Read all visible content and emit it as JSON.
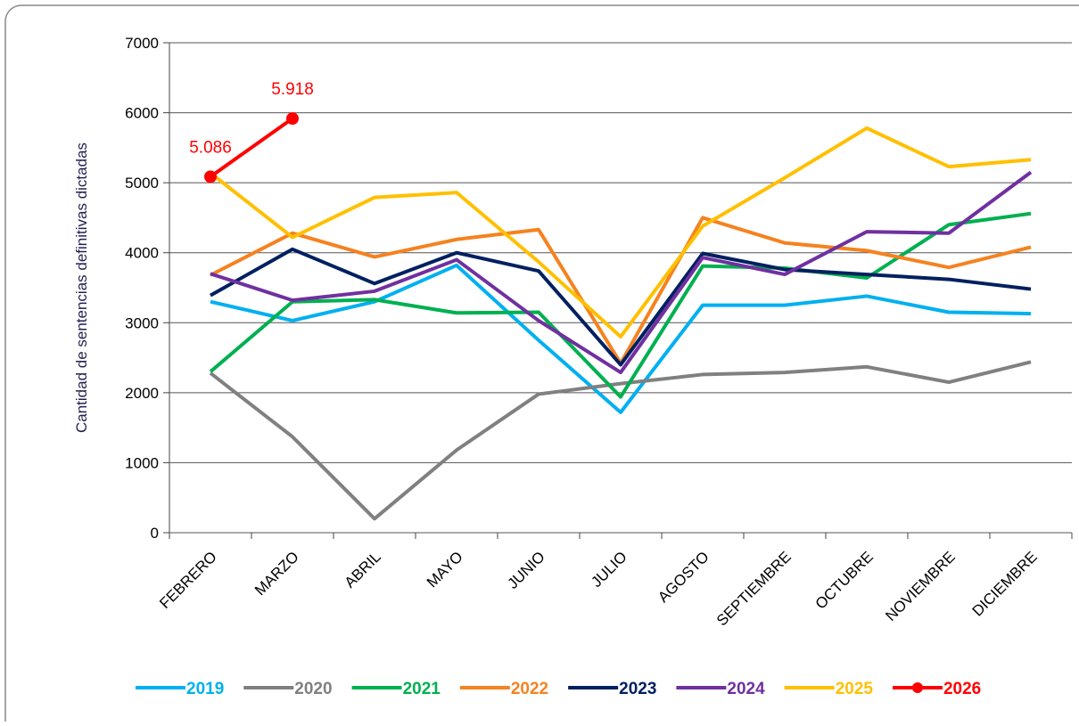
{
  "chart_data": {
    "type": "line",
    "y_label": "Cantidad de sentencias definitivas dictadas",
    "categories": [
      "FEBRERO",
      "MARZO",
      "ABRIL",
      "MAYO",
      "JUNIO",
      "JULIO",
      "AGOSTO",
      "SEPTIEMBRE",
      "OCTUBRE",
      "NOVIEMBRE",
      "DICIEMBRE"
    ],
    "series": [
      {
        "name": "2019",
        "color": "#00b0f0",
        "values": [
          3300,
          3030,
          3300,
          3820,
          2750,
          1720,
          3250,
          3250,
          3380,
          3150,
          3130
        ]
      },
      {
        "name": "2020",
        "color": "#808080",
        "values": [
          2280,
          1370,
          200,
          1180,
          1980,
          2130,
          2260,
          2290,
          2370,
          2150,
          2440
        ]
      },
      {
        "name": "2021",
        "color": "#00b050",
        "values": [
          2300,
          3300,
          3330,
          3140,
          3150,
          1940,
          3810,
          3780,
          3640,
          4400,
          4560
        ]
      },
      {
        "name": "2022",
        "color": "#f58220",
        "values": [
          3680,
          4280,
          3940,
          4190,
          4330,
          2420,
          4500,
          4140,
          4030,
          3790,
          4080
        ]
      },
      {
        "name": "2023",
        "color": "#002060",
        "values": [
          3390,
          4050,
          3560,
          4000,
          3740,
          2400,
          3990,
          3760,
          3690,
          3620,
          3480
        ]
      },
      {
        "name": "2024",
        "color": "#7030a0",
        "values": [
          3700,
          3320,
          3450,
          3900,
          3030,
          2290,
          3930,
          3690,
          4300,
          4280,
          5150
        ]
      },
      {
        "name": "2025",
        "color": "#ffc000",
        "values": [
          5140,
          4220,
          4790,
          4860,
          3870,
          2800,
          4380,
          5070,
          5780,
          5230,
          5330
        ]
      },
      {
        "name": "2026",
        "color": "#ff0000",
        "markers": true,
        "values": [
          5086,
          5918,
          null,
          null,
          null,
          null,
          null,
          null,
          null,
          null,
          null
        ],
        "value_labels": [
          "5.086",
          "5.918",
          null,
          null,
          null,
          null,
          null,
          null,
          null,
          null,
          null
        ]
      }
    ],
    "ylim": [
      0,
      7000
    ],
    "yticks": [
      0,
      1000,
      2000,
      3000,
      4000,
      5000,
      6000,
      7000
    ],
    "grid": true,
    "legend": "bottom"
  }
}
